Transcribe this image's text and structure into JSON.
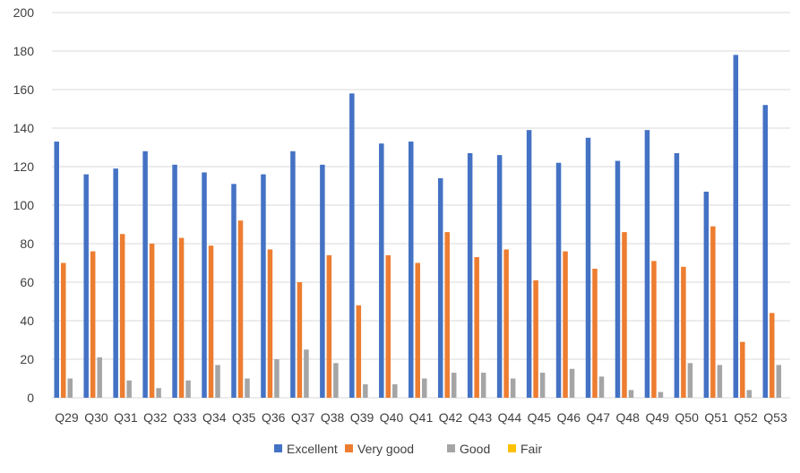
{
  "chart_data": {
    "type": "bar",
    "title": "",
    "xlabel": "",
    "ylabel": "",
    "ylim": [
      0,
      200
    ],
    "y_ticks": [
      0,
      20,
      40,
      60,
      80,
      100,
      120,
      140,
      160,
      180,
      200
    ],
    "grid": true,
    "legend_position": "bottom",
    "categories": [
      "Q29",
      "Q30",
      "Q31",
      "Q32",
      "Q33",
      "Q34",
      "Q35",
      "Q36",
      "Q37",
      "Q38",
      "Q39",
      "Q40",
      "Q41",
      "Q42",
      "Q43",
      "Q44",
      "Q45",
      "Q46",
      "Q47",
      "Q48",
      "Q49",
      "Q50",
      "Q51",
      "Q52",
      "Q53"
    ],
    "series": [
      {
        "name": "Excellent",
        "color": "#4472c4",
        "values": [
          133,
          116,
          119,
          128,
          121,
          117,
          111,
          116,
          128,
          121,
          158,
          132,
          133,
          114,
          127,
          126,
          139,
          122,
          135,
          123,
          139,
          127,
          107,
          178,
          152
        ]
      },
      {
        "name": "Very good",
        "color": "#ed7d31",
        "values": [
          70,
          76,
          85,
          80,
          83,
          79,
          92,
          77,
          60,
          74,
          48,
          74,
          70,
          86,
          73,
          77,
          61,
          76,
          67,
          86,
          71,
          68,
          89,
          29,
          44
        ]
      },
      {
        "name": "Good",
        "color": "#a5a5a5",
        "values": [
          10,
          21,
          9,
          5,
          9,
          17,
          10,
          20,
          25,
          18,
          7,
          7,
          10,
          13,
          13,
          10,
          13,
          15,
          11,
          4,
          3,
          18,
          17,
          4,
          17
        ]
      },
      {
        "name": "Fair",
        "color": "#ffc000",
        "values": [
          0,
          0,
          0,
          0,
          0,
          0,
          0,
          0,
          0,
          0,
          0,
          0,
          0,
          0,
          0,
          0,
          0,
          0,
          0,
          0,
          0,
          0,
          0,
          0,
          0
        ]
      }
    ]
  }
}
